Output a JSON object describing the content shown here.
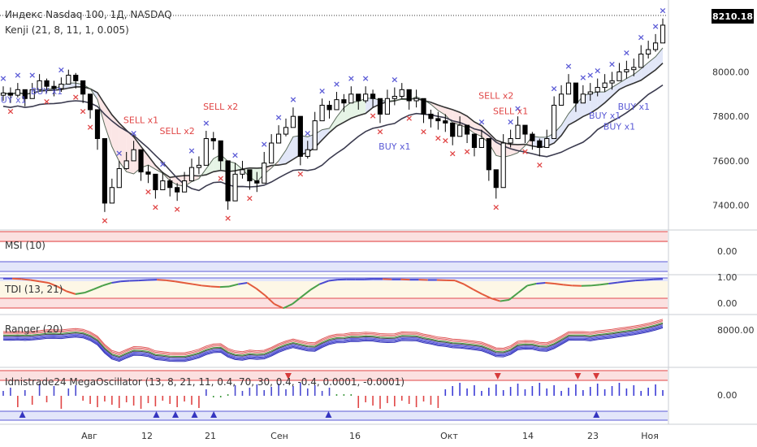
{
  "header": {
    "title": "Индекс Nasdaq 100, 1Д, NASDAQ",
    "last_price": "8210.18",
    "price_badge_color": "#000000"
  },
  "panes": {
    "main_label": "Kenji (21, 8, 11, 1, 0.005)",
    "msi_label": "MSI (10)",
    "tdi_label": "TDI (13, 21)",
    "ranger_label": "Ranger (20)",
    "osc_label": "Idnistrade24 MegaOscillator (13, 8, 21, 11, 0.4, 70, 30, 0.4, -0.4, 0.0001, -0.0001)"
  },
  "axes": {
    "main_ticks": [
      "8000.00",
      "7800.00",
      "7600.00",
      "7400.00"
    ],
    "msi_ticks": [
      "0.00"
    ],
    "tdi_ticks": [
      "1.00",
      "0.00"
    ],
    "ranger_ticks": [
      "8000.00"
    ],
    "osc_ticks": [
      "0.00"
    ],
    "x_ticks": [
      "Авг",
      "12",
      "21",
      "Сен",
      "16",
      "Окт",
      "14",
      "23",
      "Ноя"
    ]
  },
  "colors": {
    "buy": "#5b5bd6",
    "sell": "#e04646",
    "band_green": "#e3f3e3",
    "band_red": "#fbe3e3",
    "band_blue": "#dfe4f7",
    "osc_zone_red": "#fbe0e0",
    "osc_zone_blue": "#e3e6fa"
  },
  "chart_data": [
    {
      "type": "candlestick",
      "title": "Индекс Nasdaq 100, 1Д, NASDAQ",
      "ylim": [
        7300,
        8250
      ],
      "x_tick_labels": [
        "Авг",
        "12",
        "21",
        "Сен",
        "16",
        "Окт",
        "14",
        "23",
        "Ноя"
      ],
      "closes": [
        7905,
        7895,
        7920,
        7880,
        7920,
        7960,
        7935,
        7925,
        7945,
        7985,
        7960,
        7900,
        7830,
        7700,
        7410,
        7480,
        7565,
        7600,
        7650,
        7550,
        7540,
        7470,
        7510,
        7480,
        7460,
        7510,
        7570,
        7580,
        7700,
        7690,
        7600,
        7420,
        7540,
        7560,
        7510,
        7500,
        7590,
        7680,
        7720,
        7750,
        7800,
        7620,
        7650,
        7780,
        7850,
        7830,
        7875,
        7860,
        7900,
        7870,
        7900,
        7880,
        7810,
        7880,
        7890,
        7920,
        7870,
        7880,
        7810,
        7790,
        7780,
        7770,
        7710,
        7760,
        7720,
        7660,
        7700,
        7560,
        7480,
        7680,
        7700,
        7760,
        7720,
        7690,
        7660,
        7700,
        7850,
        7900,
        7950,
        7860,
        7900,
        7910,
        7930,
        7950,
        7960,
        8000,
        8010,
        8020,
        8080,
        8100,
        8130,
        8210
      ],
      "highs": [
        7935,
        7930,
        7950,
        7915,
        7950,
        7990,
        7970,
        7960,
        7975,
        8010,
        7995,
        7935,
        7870,
        7730,
        7470,
        7520,
        7600,
        7640,
        7690,
        7600,
        7580,
        7510,
        7550,
        7520,
        7500,
        7550,
        7610,
        7620,
        7735,
        7730,
        7640,
        7470,
        7590,
        7600,
        7560,
        7550,
        7640,
        7720,
        7760,
        7790,
        7840,
        7670,
        7690,
        7820,
        7880,
        7870,
        7910,
        7900,
        7935,
        7900,
        7935,
        7920,
        7860,
        7920,
        7930,
        7950,
        7910,
        7920,
        7850,
        7830,
        7820,
        7810,
        7760,
        7800,
        7760,
        7710,
        7740,
        7600,
        7520,
        7720,
        7740,
        7800,
        7760,
        7730,
        7700,
        7740,
        7890,
        7940,
        7990,
        7910,
        7940,
        7950,
        7970,
        7990,
        8000,
        8040,
        8050,
        8060,
        8120,
        8140,
        8170,
        8240
      ],
      "lows": [
        7870,
        7860,
        7885,
        7845,
        7890,
        7930,
        7905,
        7890,
        7910,
        7950,
        7925,
        7860,
        7790,
        7650,
        7370,
        7440,
        7520,
        7560,
        7610,
        7510,
        7500,
        7430,
        7470,
        7440,
        7420,
        7470,
        7530,
        7540,
        7660,
        7650,
        7560,
        7380,
        7500,
        7520,
        7470,
        7460,
        7550,
        7640,
        7680,
        7710,
        7760,
        7580,
        7610,
        7740,
        7810,
        7790,
        7835,
        7820,
        7860,
        7830,
        7860,
        7840,
        7770,
        7840,
        7850,
        7880,
        7830,
        7840,
        7770,
        7750,
        7740,
        7730,
        7670,
        7720,
        7680,
        7620,
        7660,
        7510,
        7430,
        7640,
        7660,
        7720,
        7680,
        7650,
        7620,
        7660,
        7810,
        7860,
        7910,
        7820,
        7860,
        7870,
        7890,
        7910,
        7920,
        7960,
        7970,
        7980,
        8040,
        8060,
        8090,
        8180
      ],
      "signals": [
        {
          "label": "BUY x1",
          "index": 1,
          "side": "buy",
          "price": 7860
        },
        {
          "label": "BUY x1",
          "index": 6,
          "side": "buy",
          "price": 7900
        },
        {
          "label": "SELL x1",
          "index": 19,
          "side": "sell",
          "price": 7770
        },
        {
          "label": "SELL x2",
          "index": 24,
          "side": "sell",
          "price": 7720
        },
        {
          "label": "SELL x2",
          "index": 30,
          "side": "sell",
          "price": 7830
        },
        {
          "label": "BUY x1",
          "index": 54,
          "side": "buy",
          "price": 7650
        },
        {
          "label": "SELL x2",
          "index": 68,
          "side": "sell",
          "price": 7880
        },
        {
          "label": "SELL x1",
          "index": 70,
          "side": "sell",
          "price": 7810
        },
        {
          "label": "BUY x1",
          "index": 83,
          "side": "buy",
          "price": 7790
        },
        {
          "label": "BUY x1",
          "index": 87,
          "side": "buy",
          "price": 7830
        },
        {
          "label": "BUY x1",
          "index": 85,
          "side": "buy",
          "price": 7740
        }
      ]
    },
    {
      "type": "line",
      "title": "TDI (13, 21)",
      "ylim": [
        -0.1,
        1.05
      ],
      "values": [
        1.0,
        1.0,
        0.98,
        0.95,
        0.9,
        0.85,
        0.72,
        0.55,
        0.45,
        0.5,
        0.62,
        0.75,
        0.85,
        0.9,
        0.92,
        0.93,
        0.95,
        0.96,
        0.94,
        0.9,
        0.85,
        0.8,
        0.75,
        0.72,
        0.7,
        0.72,
        0.8,
        0.85,
        0.65,
        0.4,
        0.1,
        -0.05,
        0.1,
        0.35,
        0.6,
        0.8,
        0.92,
        0.96,
        0.97,
        0.97,
        0.97,
        0.98,
        0.98,
        0.97,
        0.97,
        0.96,
        0.96,
        0.95,
        0.95,
        0.94,
        0.93,
        0.8,
        0.62,
        0.45,
        0.3,
        0.2,
        0.25,
        0.5,
        0.75,
        0.82,
        0.85,
        0.82,
        0.78,
        0.75,
        0.74,
        0.75,
        0.78,
        0.82,
        0.86,
        0.9,
        0.93,
        0.95,
        0.97,
        0.98
      ]
    },
    {
      "type": "bar",
      "title": "Idnistrade24 MegaOscillator",
      "values": [
        1,
        1,
        -1,
        1,
        -1,
        1,
        -1,
        1,
        -1,
        1,
        1,
        -1,
        -1,
        -1,
        -1,
        -1,
        -1,
        -1,
        -1,
        -1,
        -1,
        -1,
        -1,
        -1,
        -1,
        -1,
        -1,
        -1,
        1,
        -1,
        -1,
        1,
        1,
        1,
        1,
        1,
        1,
        1,
        1,
        1,
        1,
        1,
        1,
        1,
        1,
        1,
        1,
        1,
        1,
        -1,
        -1,
        -1,
        -1,
        -1,
        -1,
        -1,
        -1,
        -1,
        -1,
        -1,
        -1,
        1,
        1,
        1,
        1,
        1,
        1,
        1,
        1,
        1,
        1,
        1,
        1,
        1,
        1,
        1,
        1,
        1,
        1,
        1,
        1,
        1,
        1,
        1,
        1,
        1,
        1,
        1,
        1,
        1,
        1,
        1
      ]
    }
  ]
}
